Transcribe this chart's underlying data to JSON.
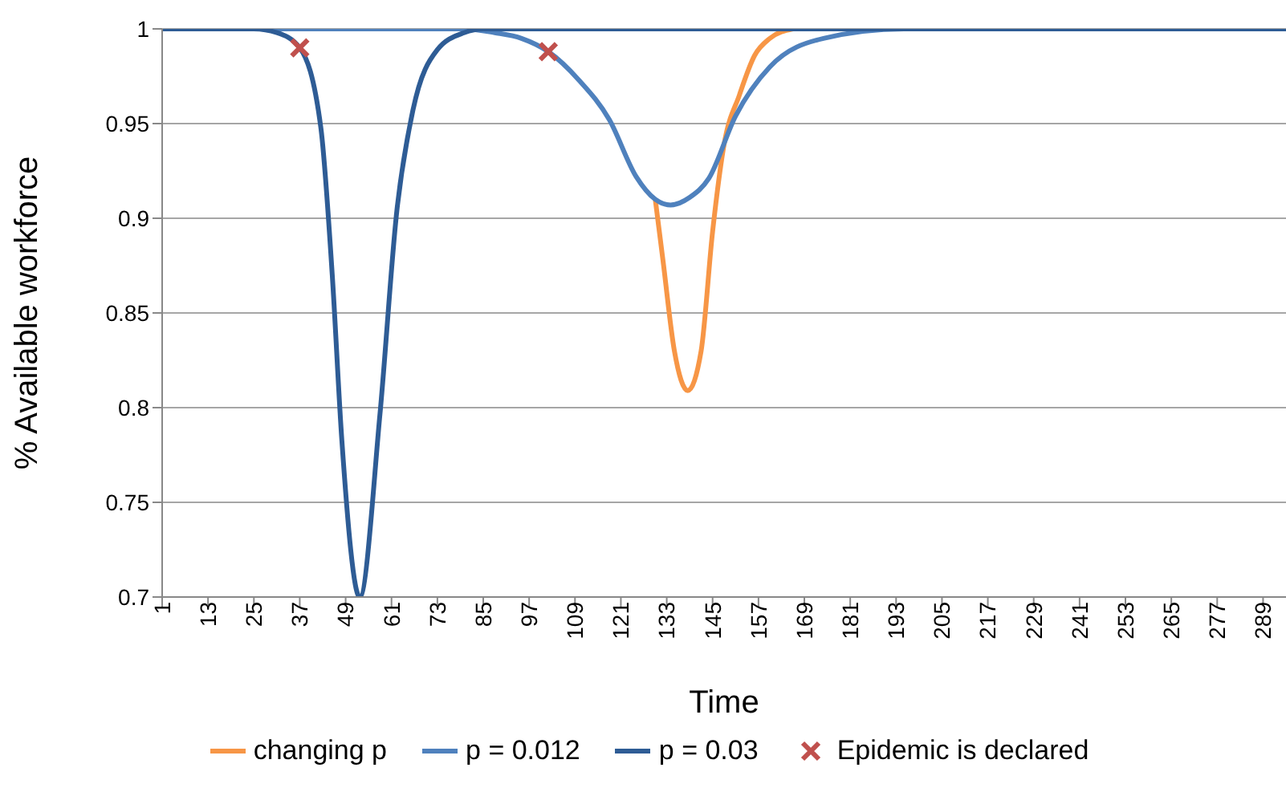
{
  "chart_data": {
    "type": "line",
    "xlabel": "Time",
    "ylabel": "% Available workforce",
    "xlim": [
      1,
      295
    ],
    "xticks": [
      1,
      13,
      25,
      37,
      49,
      61,
      73,
      85,
      97,
      109,
      121,
      133,
      145,
      157,
      169,
      181,
      193,
      205,
      217,
      229,
      241,
      253,
      265,
      277,
      289
    ],
    "ylim": [
      0.7,
      1
    ],
    "yticks": [
      0.7,
      0.75,
      0.8,
      0.85,
      0.9,
      0.95,
      1
    ],
    "grid": "y",
    "legend": "bottom",
    "marker": "none",
    "line_style": "solid",
    "series": [
      {
        "name": "changing p",
        "color": "#f79646",
        "x": [
          130,
          132,
          135,
          138.5,
          142,
          145,
          148,
          152,
          156,
          160,
          166
        ],
        "values": [
          0.91,
          0.878,
          0.83,
          0.809,
          0.83,
          0.893,
          0.939,
          0.965,
          0.986,
          0.995,
          1
        ]
      },
      {
        "name": "p = 0.012",
        "color": "#4f81bd",
        "x": [
          1,
          80,
          88,
          95,
          102,
          110,
          118,
          125,
          130,
          134,
          139,
          144,
          151,
          160,
          174,
          195,
          295
        ],
        "values": [
          1,
          1,
          0.998,
          0.995,
          0.988,
          0.973,
          0.952,
          0.922,
          0.91,
          0.907,
          0.911,
          0.921,
          0.954,
          0.98,
          0.995,
          1,
          1
        ]
      },
      {
        "name": "p = 0.03",
        "color": "#2e5c95",
        "x": [
          1,
          25,
          31,
          37,
          42.5,
          45.5,
          48,
          52.7,
          58,
          62.4,
          66.6,
          73,
          80,
          85,
          295
        ],
        "values": [
          1,
          1,
          0.998,
          0.99,
          0.948,
          0.87,
          0.783,
          0.7,
          0.797,
          0.904,
          0.957,
          0.989,
          0.998,
          1,
          1
        ]
      },
      {
        "name": "Epidemic is declared",
        "type": "scatter",
        "marker": "cross",
        "color": "#c0504d",
        "x": [
          37,
          102
        ],
        "values": [
          0.99,
          0.988
        ]
      }
    ]
  }
}
